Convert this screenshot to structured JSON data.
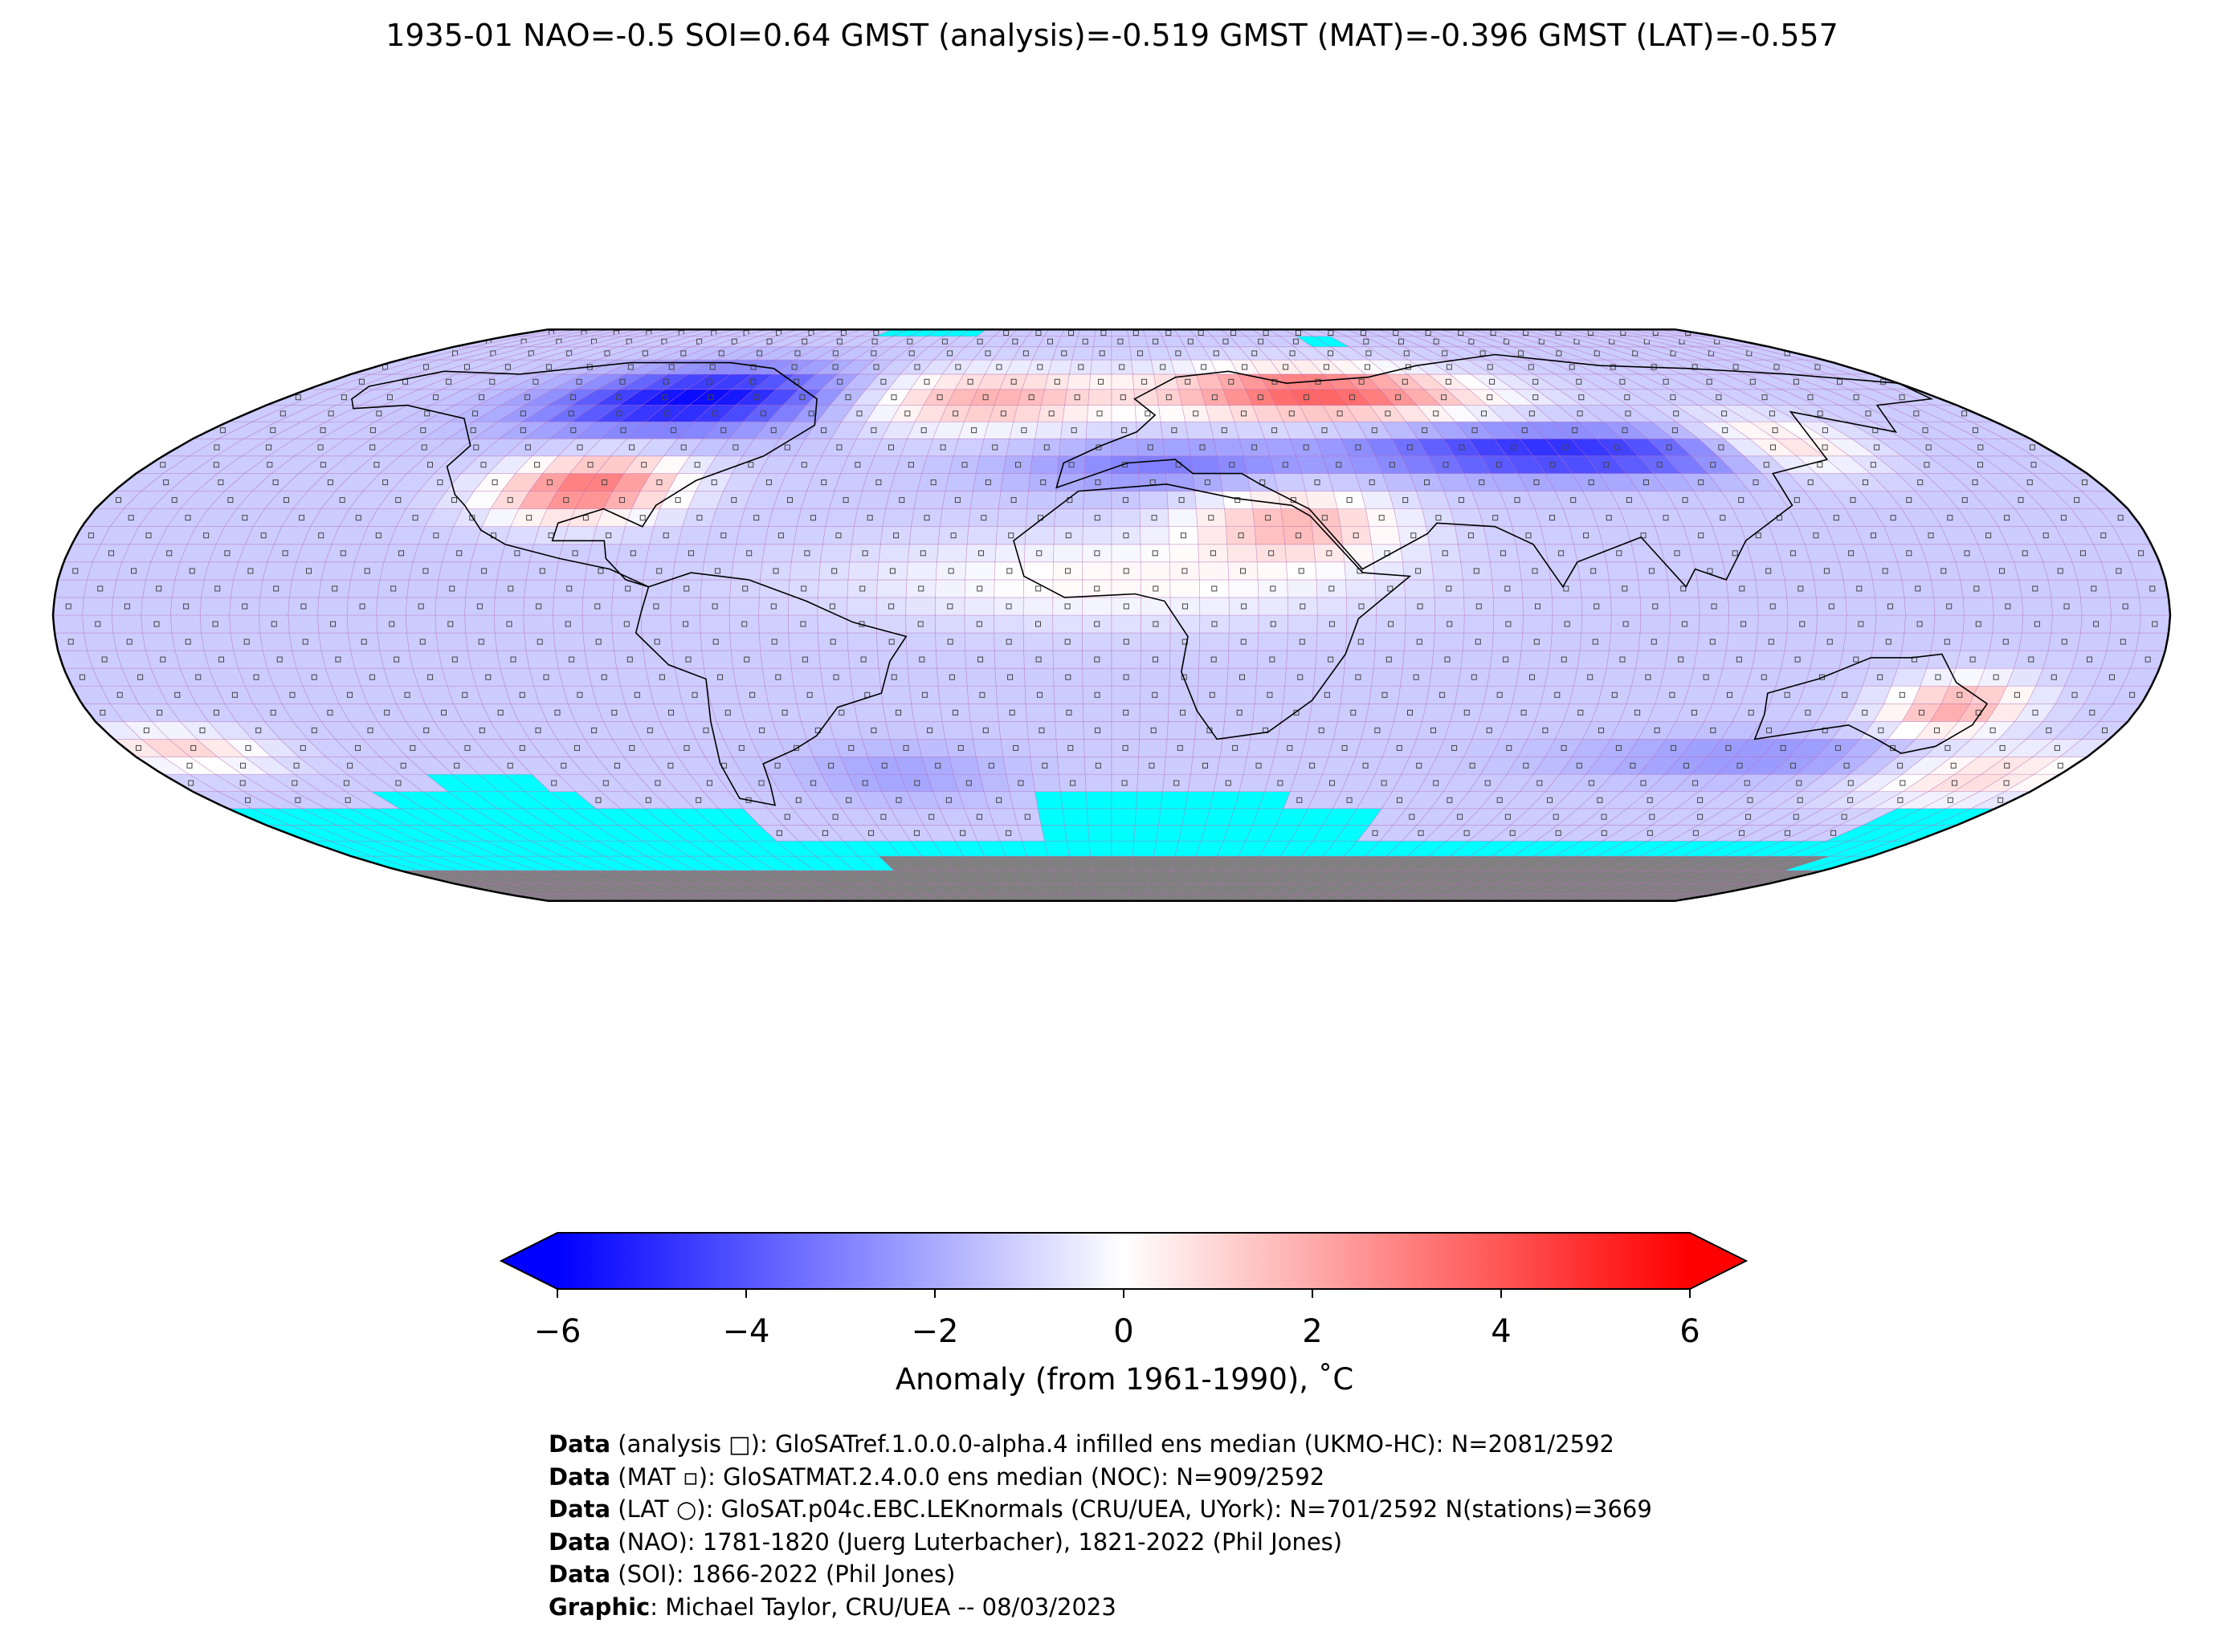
{
  "title": "1935-01 NAO=-0.5 SOI=0.64 GMST (analysis)=-0.519 GMST (MAT)=-0.396 GMST (LAT)=-0.557",
  "colorbar": {
    "label": "Anomaly (from 1961-1990), ˚C",
    "ticks": [
      "−6",
      "−4",
      "−2",
      "0",
      "2",
      "4",
      "6"
    ],
    "min": -6,
    "max": 6,
    "colors": {
      "cold": "#0000ff",
      "neutral": "#ffffff",
      "warm": "#ff0000"
    }
  },
  "map": {
    "projection": "Robinson",
    "colors": {
      "missing": "#00ffff",
      "antarctica": "#808080",
      "gridline": "#b266b2",
      "coast": "#000000"
    }
  },
  "footer": [
    {
      "bold": "Data",
      "text": " (analysis □): GloSATref.1.0.0.0-alpha.4 infilled ens median (UKMO-HC): N=2081/2592"
    },
    {
      "bold": "Data",
      "text": " (MAT ▫): GloSATMAT.2.4.0.0 ens median (NOC): N=909/2592"
    },
    {
      "bold": "Data",
      "text": " (LAT ○): GloSAT.p04c.EBC.LEKnormals (CRU/UEA, UYork): N=701/2592 N(stations)=3669"
    },
    {
      "bold": "Data",
      "text": " (NAO): 1781-1820 (Juerg Luterbacher), 1821-2022 (Phil Jones)"
    },
    {
      "bold": "Data",
      "text": " (SOI): 1866-2022 (Phil Jones)"
    },
    {
      "bold": "Graphic",
      "text": ": Michael Taylor, CRU/UEA -- 08/03/2023"
    }
  ]
}
